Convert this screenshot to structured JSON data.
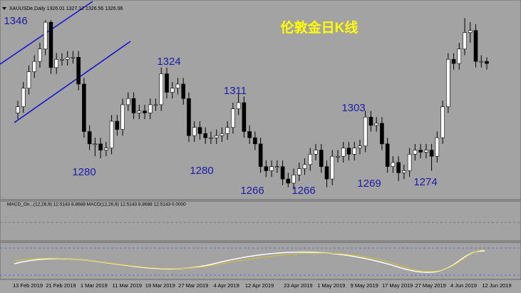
{
  "chart_data": {
    "type": "candlestick",
    "title": "伦敦金日K线",
    "subtitle": "XAUUSDe,Daily 1326.01 1327.12 1326.56 1326.96",
    "indicator_label": "MACD_On...(12,26,9) 12.5143 8.8688 MACD(12,26,9) 12.5143 8.8688 12.5143 0.0000",
    "categories": [
      "13 Feb 2019",
      null,
      null,
      null,
      null,
      null,
      "21 Feb 2019",
      null,
      null,
      null,
      null,
      null,
      "1 Mar 2019",
      null,
      null,
      null,
      null,
      null,
      "11 Mar 2019",
      null,
      null,
      null,
      null,
      null,
      "19 Mar 2019",
      null,
      null,
      null,
      null,
      null,
      "27 Mar 2019",
      null,
      null,
      null,
      null,
      null,
      "4 Apr 2019",
      null,
      null,
      null,
      null,
      null,
      "12 Apr 2019",
      null,
      null,
      null,
      null,
      null,
      null,
      "23 Apr 2019",
      null,
      null,
      null,
      null,
      null,
      "1 May 2019",
      null,
      null,
      null,
      null,
      null,
      "9 May 2019",
      null,
      null,
      null,
      null,
      null,
      "17 May 2019",
      null,
      null,
      null,
      null,
      null,
      "27 May 2019",
      null,
      null,
      null,
      null,
      null,
      "4 Jun 2019",
      null,
      null,
      null,
      null,
      null,
      "12 Jun 2019"
    ],
    "open": [
      1302,
      1305,
      1314,
      1322,
      1327,
      1333,
      1346,
      1324,
      1328,
      1328,
      1329,
      1329,
      1316,
      1293,
      1287,
      1287,
      1284,
      1285,
      1298,
      1294,
      1306,
      1309,
      1302,
      1303,
      1302,
      1306,
      1306,
      1321,
      1312,
      1314,
      1316,
      1309,
      1291,
      1295,
      1292,
      1290,
      1290,
      1291,
      1292,
      1295,
      1304,
      1307,
      1293,
      1290,
      1287,
      1276,
      1274,
      1276,
      1276,
      1270,
      1268,
      1272,
      1275,
      1277,
      1282,
      1284,
      1276,
      1270,
      1281,
      1281,
      1285,
      1282,
      1285,
      1286,
      1300,
      1296,
      1297,
      1287,
      1276,
      1278,
      1273,
      1274,
      1282,
      1284,
      1283,
      1284,
      1281,
      1290,
      1305,
      1328,
      1326,
      1333,
      1341,
      1342,
      1327,
      1327
    ],
    "high": [
      1308,
      1317,
      1325,
      1330,
      1336,
      1347,
      1347,
      1331,
      1331,
      1332,
      1332,
      1332,
      1319,
      1296,
      1290,
      1290,
      1288,
      1301,
      1301,
      1309,
      1312,
      1312,
      1306,
      1306,
      1309,
      1309,
      1324,
      1324,
      1317,
      1319,
      1319,
      1312,
      1298,
      1298,
      1295,
      1293,
      1294,
      1295,
      1298,
      1307,
      1311,
      1310,
      1296,
      1293,
      1290,
      1279,
      1279,
      1279,
      1279,
      1273,
      1275,
      1278,
      1280,
      1285,
      1287,
      1287,
      1279,
      1284,
      1284,
      1288,
      1288,
      1288,
      1289,
      1303,
      1303,
      1300,
      1300,
      1290,
      1281,
      1281,
      1277,
      1285,
      1287,
      1287,
      1287,
      1287,
      1293,
      1308,
      1331,
      1331,
      1336,
      1348,
      1346,
      1345,
      1330,
      1329
    ],
    "low": [
      1299,
      1302,
      1311,
      1319,
      1324,
      1330,
      1321,
      1321,
      1325,
      1325,
      1326,
      1313,
      1290,
      1284,
      1281,
      1280,
      1281,
      1282,
      1291,
      1291,
      1303,
      1299,
      1299,
      1299,
      1299,
      1303,
      1303,
      1309,
      1309,
      1311,
      1306,
      1288,
      1288,
      1289,
      1287,
      1287,
      1287,
      1288,
      1289,
      1292,
      1301,
      1290,
      1287,
      1284,
      1273,
      1271,
      1271,
      1273,
      1267,
      1266,
      1265,
      1269,
      1272,
      1274,
      1279,
      1273,
      1266,
      1267,
      1278,
      1278,
      1279,
      1279,
      1282,
      1283,
      1293,
      1293,
      1284,
      1273,
      1273,
      1269,
      1270,
      1271,
      1279,
      1280,
      1280,
      1274,
      1278,
      1287,
      1302,
      1323,
      1323,
      1330,
      1336,
      1324,
      1324,
      1323
    ],
    "close": [
      1305,
      1314,
      1322,
      1327,
      1333,
      1346,
      1324,
      1328,
      1328,
      1329,
      1329,
      1316,
      1293,
      1287,
      1287,
      1284,
      1285,
      1298,
      1294,
      1306,
      1309,
      1302,
      1303,
      1302,
      1306,
      1306,
      1321,
      1312,
      1314,
      1316,
      1309,
      1291,
      1295,
      1292,
      1290,
      1290,
      1291,
      1292,
      1295,
      1304,
      1307,
      1293,
      1290,
      1287,
      1276,
      1274,
      1276,
      1276,
      1270,
      1268,
      1272,
      1275,
      1277,
      1282,
      1284,
      1276,
      1270,
      1281,
      1281,
      1285,
      1282,
      1285,
      1286,
      1300,
      1296,
      1297,
      1287,
      1276,
      1278,
      1273,
      1274,
      1282,
      1284,
      1283,
      1284,
      1281,
      1290,
      1305,
      1328,
      1326,
      1333,
      1341,
      1342,
      1327,
      1327,
      1326
    ],
    "annotations": [
      1346,
      1324,
      1311,
      1303,
      1280,
      1280,
      1266,
      1266,
      1269,
      1274
    ],
    "ylim": [
      1260,
      1354
    ],
    "up_color": "#ffffff",
    "down_color": "#000000",
    "annotation_color": "#1c1ca8"
  }
}
